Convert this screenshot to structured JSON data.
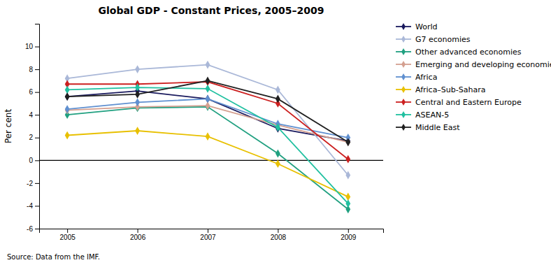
{
  "chart_data": {
    "type": "line",
    "title": "Global GDP - Constant Prices, 2005–2009",
    "ylabel": "Per cent",
    "annotations": [
      "Source: Data from the IMF."
    ],
    "x": [
      2005,
      2006,
      2007,
      2008,
      2009
    ],
    "xlim": [
      2004.6,
      2009.5
    ],
    "xticks": [
      2005,
      2006,
      2007,
      2008,
      2009
    ],
    "ylim": [
      -6,
      12
    ],
    "yticks": [
      -6,
      -4,
      -2,
      0,
      2,
      4,
      6,
      8,
      10
    ],
    "grid": false,
    "legend": "right",
    "marker": "diamond",
    "series": [
      {
        "name": "World",
        "color": "#1a1a5e",
        "values": [
          5.6,
          6.1,
          5.4,
          2.8,
          1.7
        ]
      },
      {
        "name": "G7 economies",
        "color": "#aab8d8",
        "values": [
          7.2,
          8.0,
          8.4,
          6.2,
          -1.3
        ]
      },
      {
        "name": "Other advanced economies",
        "color": "#20a080",
        "values": [
          4.0,
          4.6,
          4.7,
          0.6,
          -4.3
        ]
      },
      {
        "name": "Emerging and developing economies",
        "color": "#d4a090",
        "values": [
          4.4,
          4.7,
          4.8,
          3.1,
          1.6
        ]
      },
      {
        "name": "Africa",
        "color": "#6090d0",
        "values": [
          4.5,
          5.1,
          5.4,
          3.2,
          2.0
        ]
      },
      {
        "name": "Africa–Sub-Sahara",
        "color": "#e8c000",
        "values": [
          2.2,
          2.6,
          2.1,
          -0.3,
          -3.2
        ]
      },
      {
        "name": "Central and Eastern Europe",
        "color": "#cc2020",
        "values": [
          6.7,
          6.7,
          6.9,
          5.0,
          0.1
        ]
      },
      {
        "name": "ASEAN-5",
        "color": "#20c0a0",
        "values": [
          6.2,
          6.4,
          6.3,
          2.9,
          -3.8
        ]
      },
      {
        "name": "Middle East",
        "color": "#202020",
        "values": [
          5.6,
          5.8,
          7.0,
          5.4,
          1.6
        ]
      }
    ]
  }
}
